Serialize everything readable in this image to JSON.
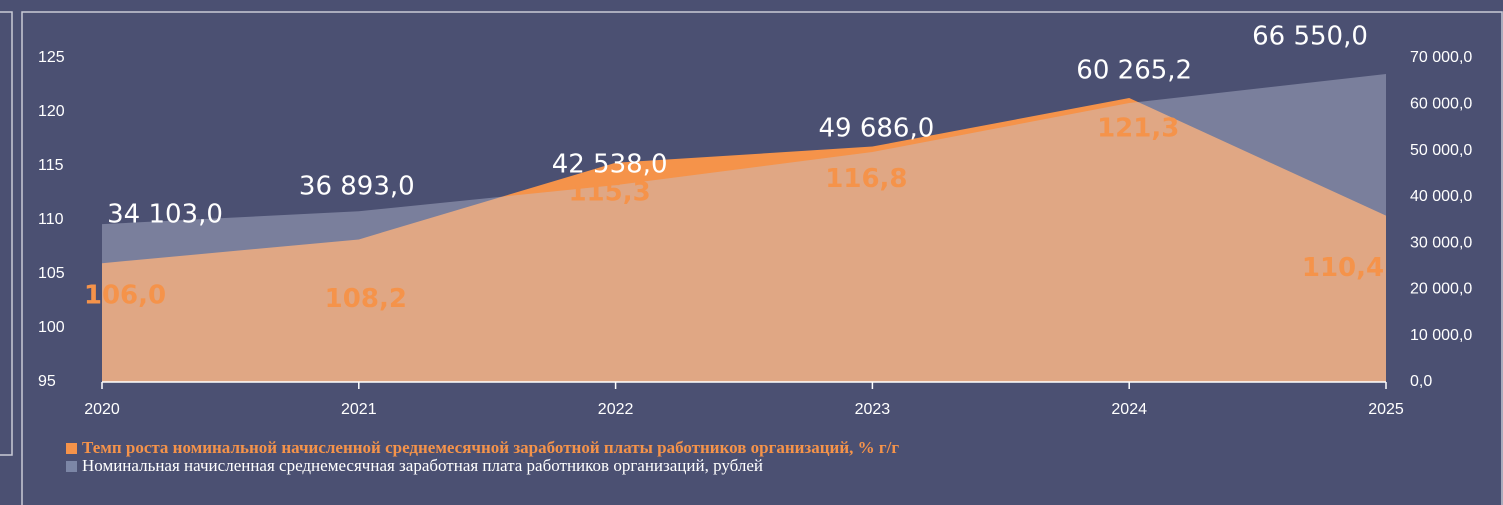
{
  "chart_data": {
    "type": "area",
    "categories": [
      "2020",
      "2021",
      "2022",
      "2023",
      "2024",
      "2025"
    ],
    "series": [
      {
        "name": "Темп роста номинальной начисленной среднемесячной заработной платы работников организаций, % г/г",
        "color": "#f5934a",
        "values": [
          106.0,
          108.2,
          115.3,
          116.8,
          121.3,
          110.4
        ],
        "value_labels": [
          "106,0",
          "108,2",
          "115,3",
          "116,8",
          "121,3",
          "110,4"
        ]
      },
      {
        "name": "Номинальная начисленная среднемесячная заработная плата работников организаций, рублей",
        "color": "#7c86a6",
        "axis": "y2",
        "values": [
          34103.0,
          36893.0,
          42538.0,
          49686.0,
          60265.2,
          66550.0
        ],
        "value_labels": [
          "34 103,0",
          "36 893,0",
          "42 538,0",
          "49 686,0",
          "60 265,2",
          "66 550,0"
        ]
      }
    ],
    "ylim": [
      95,
      125
    ],
    "yticks": [
      95,
      100,
      105,
      110,
      115,
      120,
      125
    ],
    "y2lim": [
      0,
      70000
    ],
    "y2ticks": [
      {
        "value": 0,
        "label": "0,0"
      },
      {
        "value": 10000,
        "label": "10 000,0"
      },
      {
        "value": 20000,
        "label": "20 000,0"
      },
      {
        "value": 30000,
        "label": "30 000,0"
      },
      {
        "value": 40000,
        "label": "40 000,0"
      },
      {
        "value": 50000,
        "label": "50 000,0"
      },
      {
        "value": 60000,
        "label": "60 000,0"
      },
      {
        "value": 70000,
        "label": "70 000,0"
      }
    ],
    "legend": "bottom-left"
  }
}
